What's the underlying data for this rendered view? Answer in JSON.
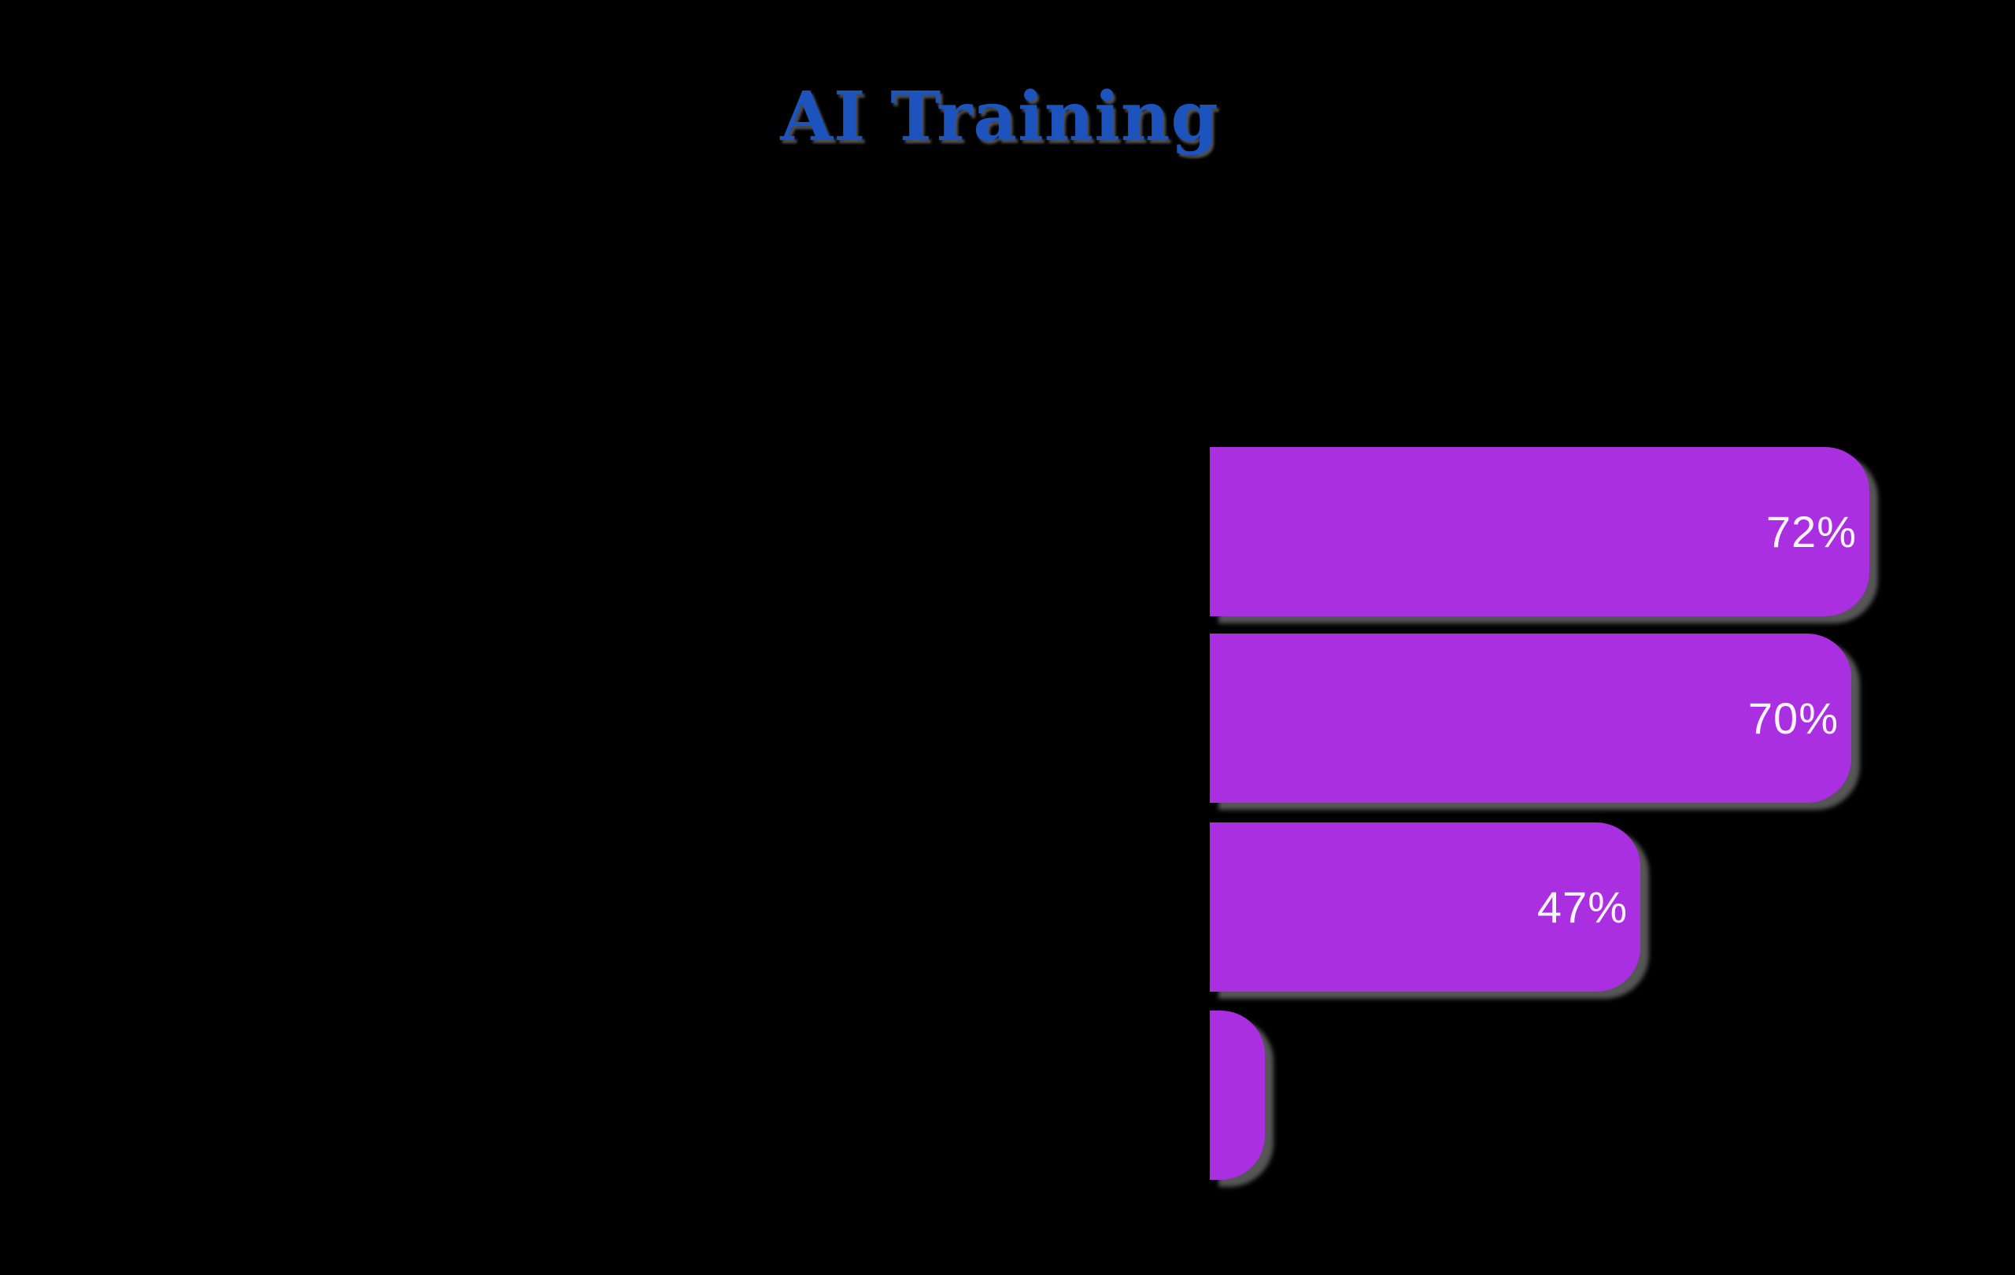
{
  "chart_data": {
    "type": "bar",
    "orientation": "horizontal",
    "title": "AI Training",
    "categories": [
      "",
      "",
      "",
      ""
    ],
    "values": [
      72,
      70,
      47,
      6
    ],
    "value_labels": [
      "72%",
      "70%",
      "47%",
      ""
    ],
    "xlabel": "",
    "ylabel": "",
    "xlim": [
      0,
      100
    ],
    "grid": false,
    "legend": false,
    "notes": "category axis labels not visible against background; fourth bar unlabeled, value estimated from bar length"
  },
  "colors": {
    "background": "#000000",
    "bar_fill": "#a92fe1",
    "bar_shadow_gray": "#6c6c6c",
    "title_text": "#1d53bd",
    "value_label_text": "#faf5fd"
  }
}
